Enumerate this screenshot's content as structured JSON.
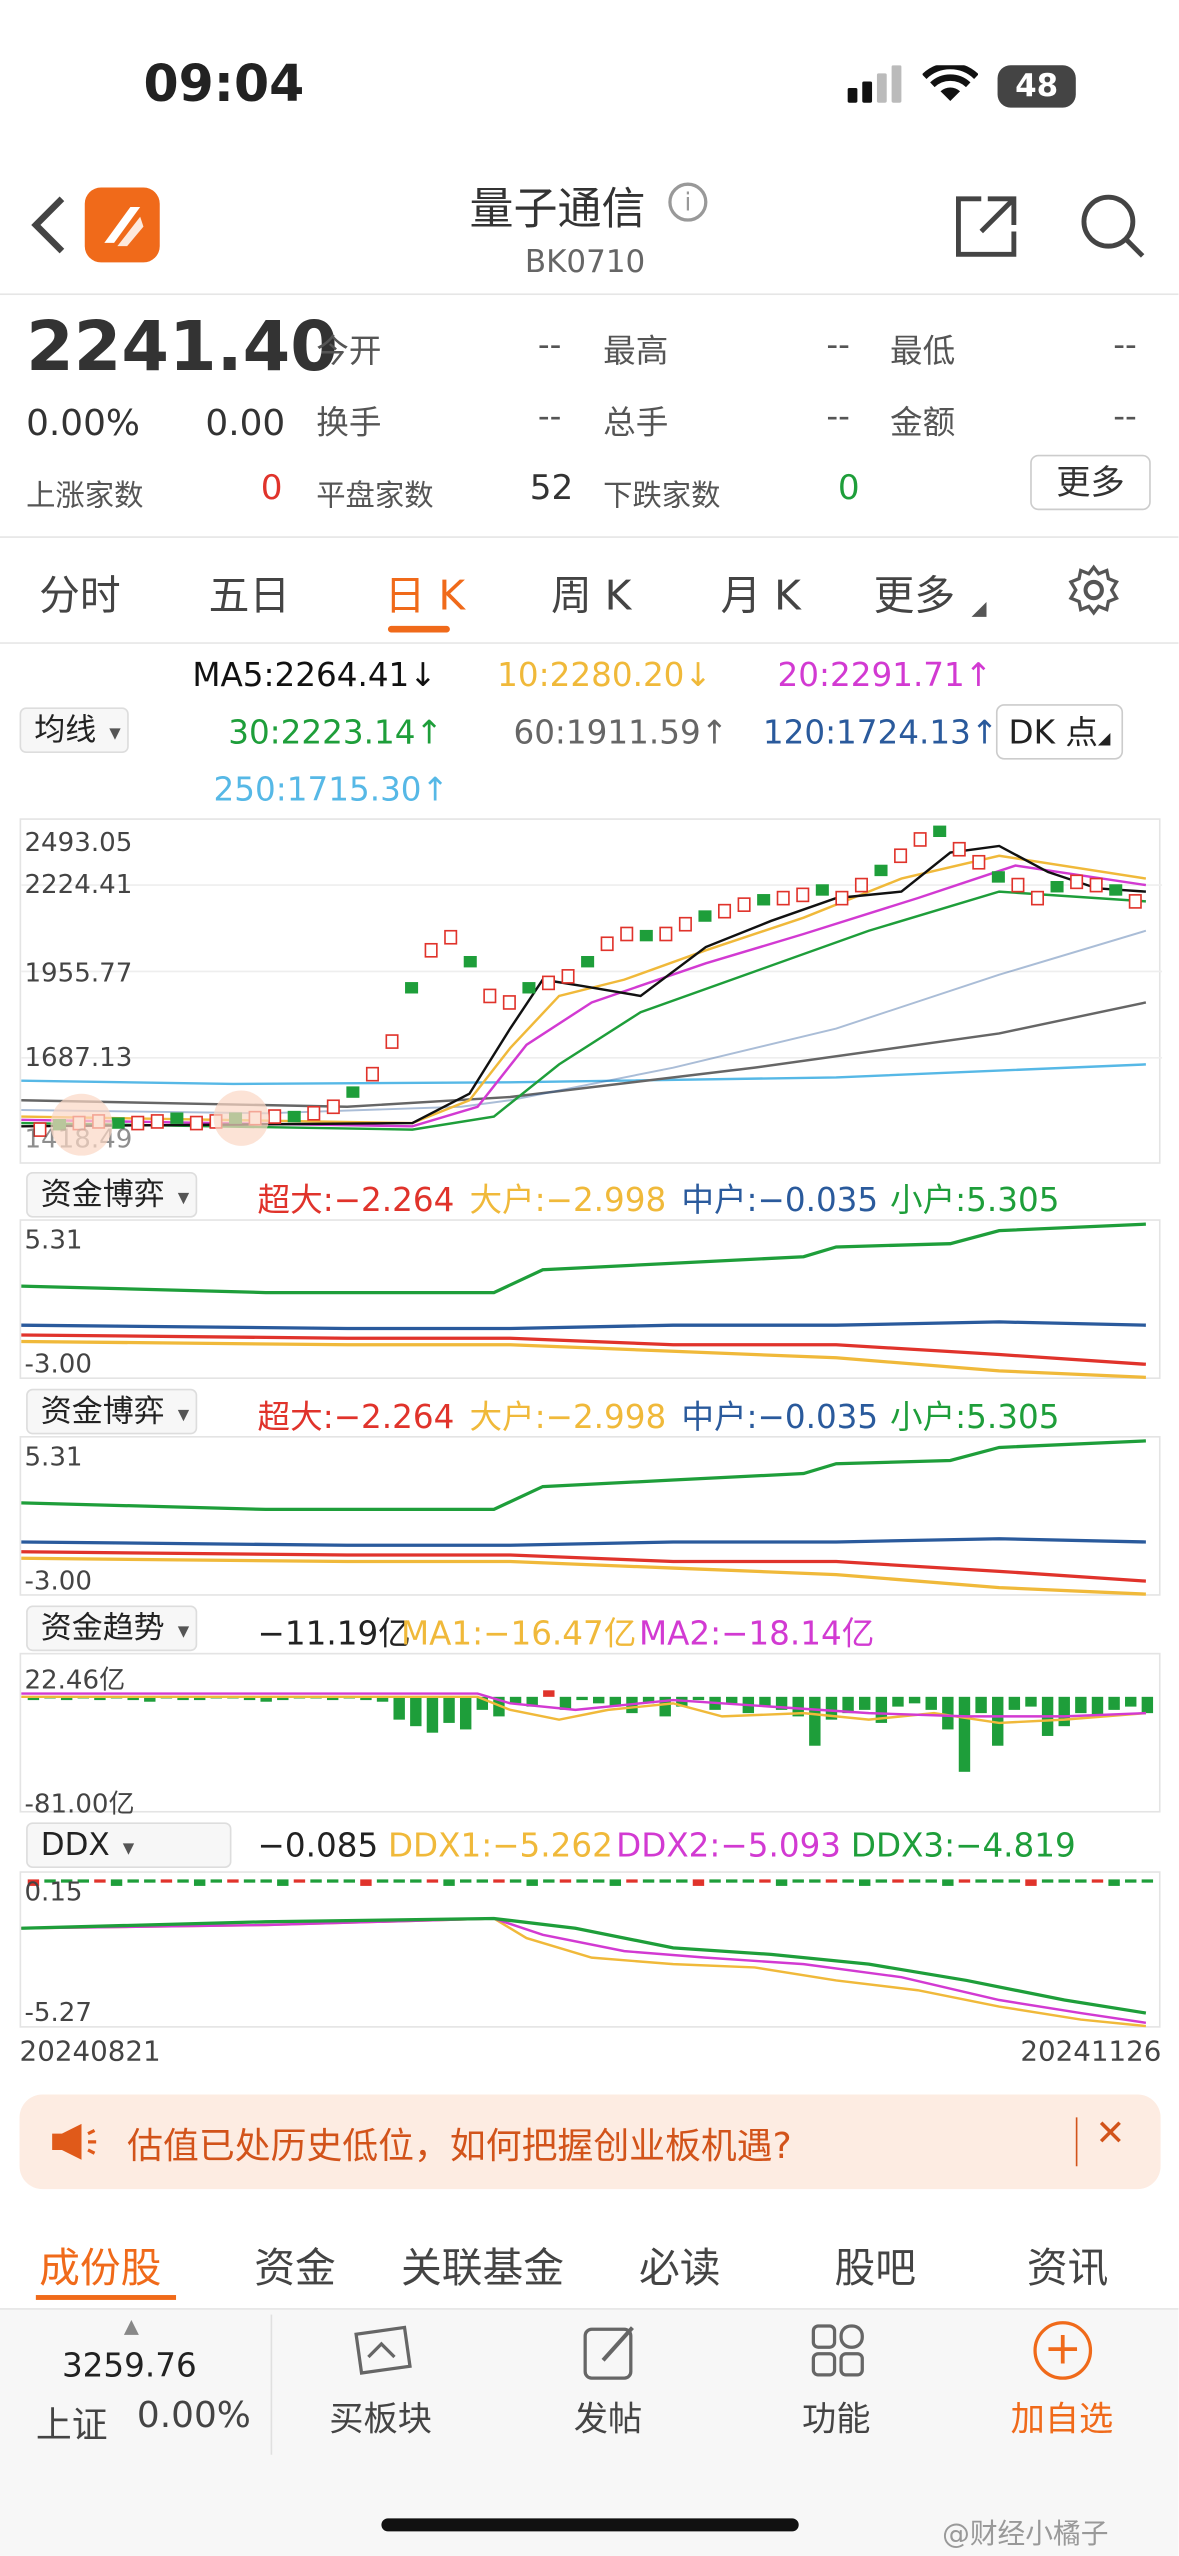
{
  "status": {
    "time": "09:04",
    "battery": "48"
  },
  "header": {
    "title": "量子通信",
    "code": "BK0710"
  },
  "quote": {
    "price": "2241.40",
    "pct": "0.00%",
    "chg": "0.00",
    "fields": [
      {
        "label": "今开",
        "value": "--"
      },
      {
        "label": "最高",
        "value": "--"
      },
      {
        "label": "最低",
        "value": "--"
      },
      {
        "label": "换手",
        "value": "--"
      },
      {
        "label": "总手",
        "value": "--"
      },
      {
        "label": "金额",
        "value": "--"
      }
    ],
    "up_label": "上涨家数",
    "up_value": "0",
    "flat_label": "平盘家数",
    "flat_value": "52",
    "down_label": "下跌家数",
    "down_value": "0",
    "more": "更多"
  },
  "tabs": [
    "分时",
    "五日",
    "日 K",
    "周 K",
    "月 K",
    "更多"
  ],
  "ma": {
    "ma5": "MA5:2264.41↓",
    "ma10": "10:2280.20↓",
    "ma20": "20:2291.71↑",
    "ma30": "30:2223.14↑",
    "ma60": "60:1911.59↑",
    "ma120": "120:1724.13↑",
    "ma250": "250:1715.30↑",
    "select": "均线",
    "dk": "DK 点"
  },
  "kline": {
    "y1": "2493.05",
    "y2": "2224.41",
    "y3": "1955.77",
    "y4": "1687.13",
    "y5": "1418.49"
  },
  "fund1": {
    "select": "资金博弈",
    "super": "超大:−2.264",
    "big": "大户:−2.998",
    "mid": "中户:−0.035",
    "small": "小户:5.305",
    "ymax": "5.31",
    "ymin": "-3.00"
  },
  "fund2": {
    "select": "资金博弈",
    "super": "超大:−2.264",
    "big": "大户:−2.998",
    "mid": "中户:−0.035",
    "small": "小户:5.305",
    "ymax": "5.31",
    "ymin": "-3.00"
  },
  "trend": {
    "select": "资金趋势",
    "value": "−11.19亿",
    "ma1": "MA1:−16.47亿",
    "ma2": "MA2:−18.14亿",
    "ymax": "22.46亿",
    "ymin": "-81.00亿"
  },
  "ddx": {
    "select": "DDX",
    "value": "−0.085",
    "ddx1": "DDX1:−5.262",
    "ddx2": "DDX2:−5.093",
    "ddx3": "DDX3:−4.819",
    "ymax": "0.15",
    "ymin": "-5.27",
    "date_start": "20240821",
    "date_end": "20241126"
  },
  "banner": {
    "text": "估值已处历史低位，如何把握创业板机遇?"
  },
  "bottom_tabs": [
    "成份股",
    "资金",
    "关联基金",
    "必读",
    "股吧",
    "资讯"
  ],
  "toolbar": {
    "index_value": "3259.76",
    "index_name": "上证",
    "index_pct": "0.00%",
    "items": [
      "买板块",
      "发帖",
      "功能",
      "加自选"
    ]
  },
  "watermark": "@财经小橘子",
  "colors": {
    "up": "#e0332b",
    "down": "#1e9e3a",
    "accent": "#f06a1a",
    "ma5": "#111111",
    "ma10": "#f0b93a",
    "ma20": "#d23ad2",
    "ma30": "#1e9e3a",
    "ma60": "#666666",
    "ma120": "#2a5a9c",
    "ma250": "#56b8e6"
  }
}
